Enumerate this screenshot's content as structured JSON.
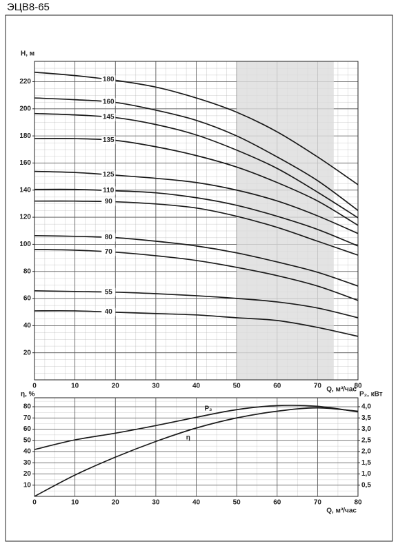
{
  "title": "ЭЦВ8-65",
  "chart_data": [
    {
      "type": "line",
      "xlabel": "Q, м³/час",
      "ylabel": "H, м",
      "x": [
        0,
        10,
        20,
        30,
        40,
        50,
        60,
        70,
        80
      ],
      "xlim": [
        0,
        80
      ],
      "xticks": [
        0,
        10,
        20,
        30,
        40,
        50,
        60,
        70,
        80
      ],
      "ylim": [
        0,
        235
      ],
      "yticks": [
        20,
        40,
        60,
        80,
        100,
        120,
        140,
        160,
        180,
        200,
        220
      ],
      "grid": true,
      "shaded_range": [
        50,
        74
      ],
      "shade_color": "#dcdcdc",
      "series": [
        {
          "name": "180",
          "color": "#1a1a1a",
          "values": [
            227,
            224.5,
            221,
            216,
            208,
            197.5,
            183,
            164.5,
            144
          ]
        },
        {
          "name": "160",
          "color": "#1a1a1a",
          "values": [
            208,
            206.7,
            204.7,
            199,
            191.5,
            180,
            164.5,
            147,
            125
          ]
        },
        {
          "name": "145",
          "color": "#1a1a1a",
          "values": [
            196.5,
            195.5,
            193.5,
            188.4,
            180.7,
            169.5,
            156,
            138.5,
            119.6
          ]
        },
        {
          "name": "135",
          "color": "#1a1a1a",
          "values": [
            178,
            178,
            176.7,
            172,
            165.5,
            157,
            145.6,
            132,
            114
          ]
        },
        {
          "name": "125",
          "color": "#1a1a1a",
          "values": [
            153.8,
            153,
            151,
            148.7,
            145.6,
            140,
            132,
            121,
            108
          ]
        },
        {
          "name": "110",
          "color": "#1a1a1a",
          "values": [
            140.5,
            140.5,
            139.5,
            138,
            134.4,
            128.8,
            120.7,
            111,
            98.8
          ]
        },
        {
          "name": "90",
          "color": "#1a1a1a",
          "values": [
            131.9,
            131.9,
            131.4,
            129.8,
            126.8,
            120.7,
            112.5,
            102.3,
            92
          ]
        },
        {
          "name": "80",
          "color": "#1a1a1a",
          "values": [
            106.4,
            105.9,
            104.9,
            102.3,
            98.8,
            93.7,
            87,
            79.4,
            69.2
          ]
        },
        {
          "name": "70",
          "color": "#1a1a1a",
          "values": [
            96.2,
            95.7,
            94.2,
            91.6,
            88.1,
            83,
            76.9,
            69.2,
            58.6
          ]
        },
        {
          "name": "55",
          "color": "#1a1a1a",
          "values": [
            65.7,
            65.2,
            64.7,
            63.6,
            62.1,
            60.1,
            57.5,
            53,
            45.8
          ]
        },
        {
          "name": "40",
          "color": "#1a1a1a",
          "values": [
            50.9,
            50.9,
            49.9,
            48.9,
            47.9,
            45.8,
            43.8,
            38.7,
            32.1
          ]
        }
      ]
    },
    {
      "type": "line",
      "xlabel": "Q, м³/час",
      "ylabel": "η, %",
      "y2label": "P₂, кВт",
      "x": [
        0,
        10,
        20,
        30,
        40,
        50,
        60,
        70,
        80
      ],
      "xlim": [
        0,
        80
      ],
      "xticks": [
        0,
        10,
        20,
        30,
        40,
        50,
        60,
        70,
        80
      ],
      "ylim": [
        0,
        88
      ],
      "yticks": [
        10,
        20,
        30,
        40,
        50,
        60,
        70,
        80
      ],
      "y2lim": [
        0,
        4.4
      ],
      "y2ticks": [
        {
          "value": 0.5,
          "label": "0,5"
        },
        {
          "value": 1.0,
          "label": "1,0"
        },
        {
          "value": 1.5,
          "label": "1,5"
        },
        {
          "value": 2.0,
          "label": "2,0"
        },
        {
          "value": 2.5,
          "label": "2,5"
        },
        {
          "value": 3.0,
          "label": "3,0"
        },
        {
          "value": 3.5,
          "label": "3,5"
        },
        {
          "value": 4.0,
          "label": "4,0"
        }
      ],
      "grid": true,
      "series": [
        {
          "name": "P₂",
          "color": "#1a1a1a",
          "axis": "y2",
          "values": [
            2.09,
            2.52,
            2.82,
            3.16,
            3.53,
            3.87,
            4.05,
            4.02,
            3.77
          ]
        },
        {
          "name": "η",
          "color": "#1a1a1a",
          "values": [
            0,
            19,
            35,
            49,
            61,
            70,
            76,
            79,
            76
          ]
        }
      ]
    }
  ]
}
